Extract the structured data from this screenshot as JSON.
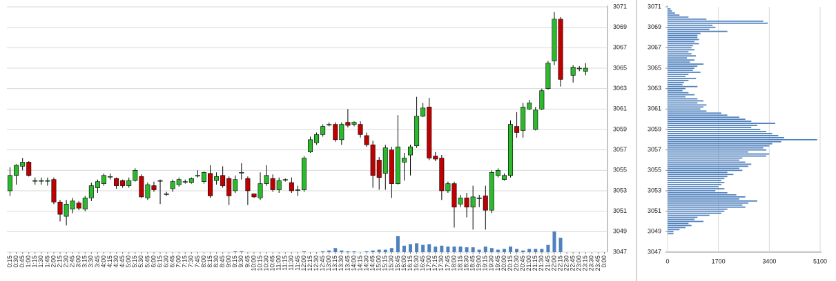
{
  "chart_data": [
    {
      "type": "candlestick",
      "categories": [
        "0:15",
        "0:30",
        "0:45",
        "1:00",
        "1:15",
        "1:30",
        "1:45",
        "2:00",
        "2:15",
        "2:30",
        "2:45",
        "3:00",
        "3:15",
        "3:30",
        "3:45",
        "4:00",
        "4:15",
        "4:30",
        "4:45",
        "5:00",
        "5:15",
        "5:30",
        "5:45",
        "6:00",
        "6:15",
        "6:30",
        "6:45",
        "7:00",
        "7:15",
        "7:30",
        "7:45",
        "8:00",
        "8:15",
        "8:30",
        "8:45",
        "9:00",
        "9:15",
        "9:30",
        "9:45",
        "10:00",
        "10:15",
        "10:30",
        "10:45",
        "11:00",
        "11:15",
        "11:30",
        "11:45",
        "12:00",
        "12:15",
        "12:30",
        "12:45",
        "13:00",
        "13:15",
        "13:30",
        "13:45",
        "14:00",
        "14:15",
        "14:30",
        "14:45",
        "15:00",
        "15:15",
        "15:30",
        "15:45",
        "16:00",
        "16:15",
        "16:30",
        "16:45",
        "17:00",
        "17:15",
        "17:30",
        "17:45",
        "18:00",
        "18:15",
        "18:30",
        "18:45",
        "19:00",
        "19:15",
        "19:30",
        "19:45",
        "20:00",
        "20:15",
        "20:30",
        "20:45",
        "21:00",
        "21:15",
        "21:30",
        "21:45",
        "22:00",
        "22:15",
        "22:30",
        "22:45",
        "23:00",
        "23:15",
        "23:30",
        "23:45",
        "0:00"
      ],
      "open": [
        3053.0,
        3054.5,
        3055.4,
        3055.8,
        3054.0,
        3054.0,
        3054.0,
        3054.1,
        3051.9,
        3050.5,
        3051.2,
        3051.8,
        3051.2,
        3052.3,
        3053.3,
        3053.7,
        3054.4,
        3054.2,
        3054.0,
        3053.5,
        3054.0,
        3054.4,
        3052.3,
        3053.5,
        3054.0,
        3052.7,
        3053.2,
        3053.6,
        3053.9,
        3053.8,
        3054.5,
        3053.9,
        3054.7,
        3054.0,
        3054.5,
        3054.2,
        3053.0,
        3054.8,
        3054.2,
        3052.7,
        3052.3,
        3053.7,
        3054.2,
        3053.1,
        3054.1,
        3053.8,
        3053.1,
        3053.1,
        3056.8,
        3057.7,
        3058.5,
        3059.5,
        3059.5,
        3058.0,
        3059.7,
        3059.5,
        3059.5,
        3058.4,
        3057.5,
        3056.0,
        3054.7,
        3057.0,
        3053.7,
        3055.8,
        3056.5,
        3057.4,
        3060.3,
        3061.2,
        3056.4,
        3056.2,
        3053.0,
        3053.7,
        3051.7,
        3052.3,
        3051.4,
        3052.3,
        3052.5,
        3051.1,
        3054.5,
        3054.1,
        3054.5,
        3059.3,
        3058.9,
        3061.0,
        3059.0,
        3061.0,
        3063.0,
        3065.7,
        3069.8,
        null,
        3064.3,
        3065.0,
        3064.7,
        null,
        null,
        null
      ],
      "high": [
        3055.3,
        3055.6,
        3056.2,
        3055.9,
        3054.3,
        3054.3,
        3054.3,
        3054.3,
        3052.1,
        3052.1,
        3052.3,
        3052.0,
        3052.5,
        3053.8,
        3054.1,
        3054.7,
        3054.7,
        3054.3,
        3054.1,
        3054.3,
        3055.2,
        3054.6,
        3053.8,
        3053.9,
        3054.1,
        3052.9,
        3054.1,
        3054.3,
        3054.1,
        3054.3,
        3055.0,
        3054.9,
        3055.5,
        3054.8,
        3055.4,
        3054.4,
        3054.5,
        3055.7,
        3054.4,
        3052.7,
        3054.8,
        3055.5,
        3054.6,
        3054.3,
        3054.2,
        3054.3,
        3053.5,
        3056.4,
        3058.3,
        3058.7,
        3059.5,
        3059.7,
        3059.7,
        3059.7,
        3061.0,
        3059.8,
        3059.8,
        3058.7,
        3057.9,
        3056.3,
        3057.5,
        3057.3,
        3060.4,
        3056.7,
        3057.5,
        3062.2,
        3061.6,
        3062.1,
        3056.8,
        3056.5,
        3053.9,
        3053.9,
        3052.6,
        3052.8,
        3053.5,
        3052.6,
        3053.5,
        3055.0,
        3055.2,
        3054.7,
        3059.9,
        3060.7,
        3061.6,
        3061.9,
        3061.2,
        3063.0,
        3065.7,
        3070.5,
        3070.0,
        null,
        3065.3,
        3065.2,
        3065.5,
        null,
        null,
        null
      ],
      "low": [
        3052.5,
        3053.6,
        3055.0,
        3054.4,
        3053.6,
        3053.6,
        3053.5,
        3051.7,
        3050.0,
        3049.6,
        3050.8,
        3051.1,
        3051.0,
        3052.0,
        3052.8,
        3053.5,
        3054.1,
        3053.2,
        3053.3,
        3053.3,
        3053.9,
        3052.3,
        3052.1,
        3052.9,
        3051.7,
        3052.5,
        3052.9,
        3053.4,
        3053.7,
        3053.7,
        3054.3,
        3053.7,
        3052.3,
        3053.6,
        3053.3,
        3051.6,
        3052.8,
        3054.1,
        3051.6,
        3052.3,
        3052.1,
        3053.5,
        3052.9,
        3052.8,
        3053.9,
        3052.8,
        3052.5,
        3052.9,
        3056.7,
        3057.5,
        3058.3,
        3059.3,
        3057.8,
        3057.5,
        3059.2,
        3059.3,
        3058.2,
        3057.3,
        3053.3,
        3053.1,
        3053.1,
        3052.3,
        3053.6,
        3054.0,
        3054.5,
        3057.2,
        3060.2,
        3056.0,
        3055.9,
        3052.1,
        3052.8,
        3049.4,
        3051.4,
        3050.4,
        3049.2,
        3051.4,
        3049.2,
        3050.8,
        3054.3,
        3054.0,
        3054.3,
        3058.2,
        3058.2,
        3060.9,
        3058.9,
        3060.9,
        3062.9,
        3065.3,
        3063.2,
        null,
        3063.6,
        3064.7,
        3064.3,
        null,
        null,
        null
      ],
      "close": [
        3054.5,
        3055.5,
        3055.8,
        3054.5,
        3054.0,
        3054.0,
        3054.0,
        3051.9,
        3050.7,
        3051.7,
        3052.0,
        3051.3,
        3052.3,
        3053.5,
        3053.9,
        3054.5,
        3054.4,
        3053.5,
        3053.5,
        3054.0,
        3055.0,
        3052.4,
        3053.6,
        3053.1,
        3054.0,
        3052.7,
        3053.9,
        3054.1,
        3053.9,
        3054.2,
        3054.5,
        3054.8,
        3052.5,
        3054.4,
        3053.5,
        3052.5,
        3054.1,
        3054.8,
        3053.0,
        3052.4,
        3053.7,
        3054.5,
        3053.1,
        3054.0,
        3054.1,
        3053.0,
        3053.1,
        3056.2,
        3058.0,
        3058.5,
        3059.3,
        3059.5,
        3058.0,
        3059.5,
        3059.4,
        3059.7,
        3058.5,
        3057.5,
        3054.5,
        3054.3,
        3057.2,
        3053.7,
        3057.3,
        3056.2,
        3057.3,
        3060.3,
        3061.1,
        3056.2,
        3056.1,
        3053.0,
        3053.7,
        3051.4,
        3052.3,
        3051.4,
        3052.4,
        3052.3,
        3051.1,
        3054.8,
        3055.0,
        3054.5,
        3059.5,
        3058.7,
        3061.2,
        3061.6,
        3060.9,
        3062.8,
        3065.5,
        3069.8,
        3063.9,
        null,
        3065.1,
        3065.0,
        3065.0,
        null,
        null,
        null
      ],
      "volume": [
        0,
        0,
        0,
        0,
        0,
        0,
        0,
        0,
        0,
        0,
        0,
        0,
        0,
        0,
        0,
        0,
        0,
        0,
        0,
        0,
        0,
        0,
        0,
        0,
        0,
        0,
        0,
        0,
        0,
        0,
        0,
        0,
        0,
        0,
        0,
        0,
        1,
        1,
        0,
        0,
        0,
        0,
        0,
        0,
        0,
        0,
        0,
        1,
        0,
        0,
        1,
        2,
        5,
        2,
        1,
        1,
        0,
        1,
        2,
        3,
        3,
        5,
        20,
        8,
        10,
        11,
        9,
        10,
        7,
        8,
        7,
        7,
        7,
        6,
        6,
        3,
        7,
        5,
        3,
        4,
        7,
        4,
        2,
        4,
        4,
        4,
        9,
        26,
        18,
        null,
        null,
        null,
        null,
        null,
        null,
        null
      ],
      "up_color": "#2db82d",
      "down_color": "#c00000",
      "volume_color": "#4f81bd",
      "ylim": [
        3047,
        3071
      ],
      "yticks": [
        3047,
        3049,
        3051,
        3053,
        3055,
        3057,
        3059,
        3061,
        3063,
        3065,
        3067,
        3069,
        3071
      ],
      "grid": true
    },
    {
      "type": "barh",
      "levels": [
        3070.8,
        3070.6,
        3070.4,
        3070.2,
        3070.0,
        3069.8,
        3069.6,
        3069.4,
        3069.2,
        3069.0,
        3068.8,
        3068.6,
        3068.4,
        3068.2,
        3068.0,
        3067.8,
        3067.6,
        3067.4,
        3067.2,
        3067.0,
        3066.8,
        3066.6,
        3066.4,
        3066.2,
        3066.0,
        3065.8,
        3065.6,
        3065.4,
        3065.2,
        3065.0,
        3064.8,
        3064.6,
        3064.4,
        3064.2,
        3064.0,
        3063.8,
        3063.6,
        3063.4,
        3063.2,
        3063.0,
        3062.8,
        3062.6,
        3062.4,
        3062.2,
        3062.0,
        3061.8,
        3061.6,
        3061.4,
        3061.2,
        3061.0,
        3060.8,
        3060.6,
        3060.4,
        3060.2,
        3060.0,
        3059.8,
        3059.6,
        3059.4,
        3059.2,
        3059.0,
        3058.8,
        3058.6,
        3058.4,
        3058.2,
        3058.0,
        3057.8,
        3057.6,
        3057.4,
        3057.2,
        3057.0,
        3056.8,
        3056.6,
        3056.4,
        3056.2,
        3056.0,
        3055.8,
        3055.6,
        3055.4,
        3055.2,
        3055.0,
        3054.8,
        3054.6,
        3054.4,
        3054.2,
        3054.0,
        3053.8,
        3053.6,
        3053.4,
        3053.2,
        3053.0,
        3052.8,
        3052.6,
        3052.4,
        3052.2,
        3052.0,
        3051.8,
        3051.6,
        3051.4,
        3051.2,
        3051.0,
        3050.8,
        3050.6,
        3050.4,
        3050.2,
        3050.0,
        3049.8,
        3049.6,
        3049.4,
        3049.2,
        3049.0,
        3048.8
      ],
      "values": [
        100,
        150,
        250,
        400,
        700,
        1300,
        3200,
        3350,
        1500,
        1600,
        1400,
        2000,
        1100,
        1000,
        1000,
        1050,
        900,
        1050,
        850,
        800,
        900,
        700,
        800,
        950,
        650,
        900,
        750,
        1200,
        1000,
        900,
        850,
        1100,
        700,
        600,
        950,
        700,
        550,
        500,
        1000,
        600,
        500,
        700,
        900,
        600,
        1000,
        1200,
        1000,
        1300,
        1200,
        1100,
        1300,
        1800,
        2000,
        2400,
        2600,
        2800,
        3600,
        3000,
        2800,
        3100,
        3300,
        3500,
        3700,
        3900,
        5000,
        3800,
        3500,
        3400,
        3200,
        3300,
        2700,
        3400,
        3300,
        2500,
        2400,
        2600,
        2800,
        2700,
        2400,
        2500,
        2000,
        2200,
        2000,
        1900,
        1800,
        1900,
        1800,
        1700,
        1900,
        1600,
        2000,
        2300,
        2600,
        2400,
        3000,
        2700,
        2500,
        2600,
        2000,
        1900,
        1800,
        1400,
        1000,
        900,
        1200,
        700,
        800,
        600,
        400,
        200,
        200
      ],
      "color": "#4f81bd",
      "ylim": [
        3047,
        3071
      ],
      "yticks": [
        3047,
        3049,
        3051,
        3053,
        3055,
        3057,
        3059,
        3061,
        3063,
        3065,
        3067,
        3069,
        3071
      ],
      "xlim": [
        0,
        5100
      ],
      "xticks": [
        0,
        1700,
        3400,
        5100
      ],
      "grid": true
    }
  ]
}
